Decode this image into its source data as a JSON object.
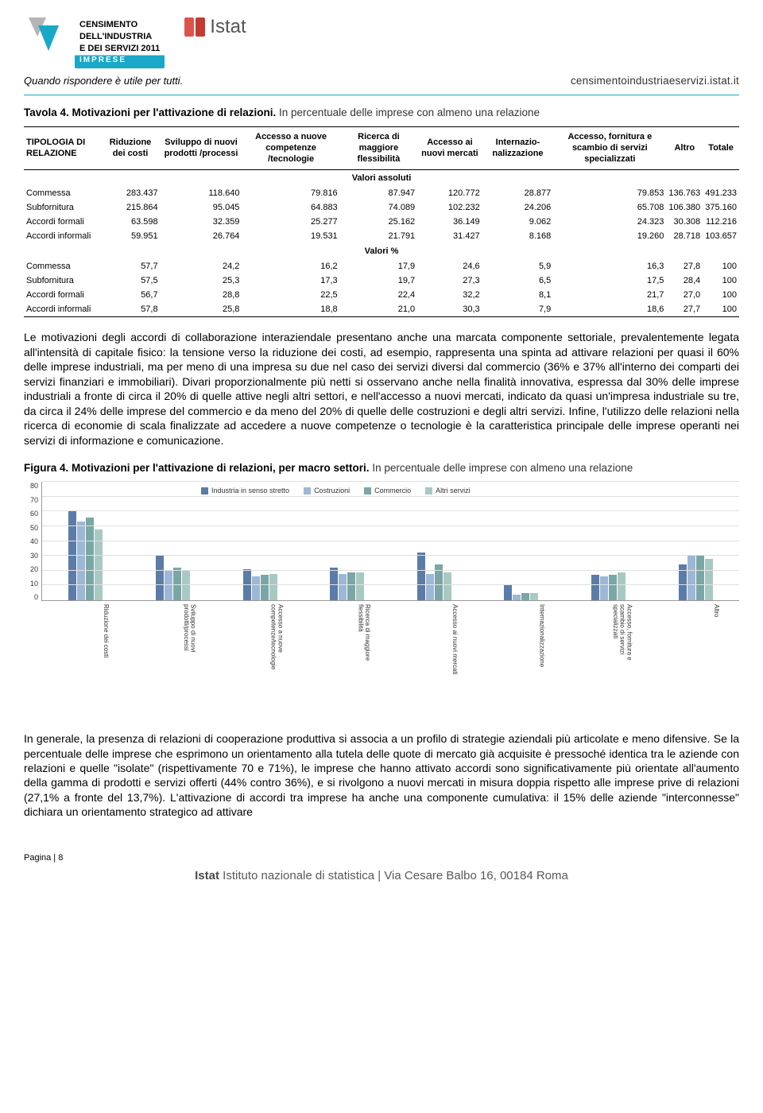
{
  "header": {
    "census": {
      "line1": "CENSIMENTO",
      "line2": "DELL'INDUSTRIA",
      "line3": "E DEI SERVIZI 2011",
      "line4": "IMPRESE"
    },
    "istat_wordmark": "Istat",
    "tagline": "Quando rispondere è utile per tutti.",
    "url": "censimentoindustriaeservizi.istat.it",
    "logo_colors": {
      "arrow1": "#b5b5b5",
      "arrow2": "#19a8c7",
      "bar1": "#d9554b",
      "bar2": "#c43a30"
    }
  },
  "table_caption": {
    "bold": "Tavola 4. Motivazioni per l'attivazione di relazioni.",
    "light": " In percentuale delle imprese con almeno una relazione"
  },
  "table": {
    "columns": [
      "TIPOLOGIA DI RELAZIONE",
      "Riduzione dei costi",
      "Sviluppo di nuovi prodotti /processi",
      "Accesso a nuove competenze /tecnologie",
      "Ricerca di maggiore flessibilità",
      "Accesso ai nuovi mercati",
      "Internazio-nalizzazione",
      "Accesso, fornitura e scambio di servizi specializzati",
      "Altro",
      "Totale"
    ],
    "section1": "Valori assoluti",
    "rows_abs": [
      [
        "Commessa",
        "283.437",
        "118.640",
        "79.816",
        "87.947",
        "120.772",
        "28.877",
        "79.853",
        "136.763",
        "491.233"
      ],
      [
        "Subfornitura",
        "215.864",
        "95.045",
        "64.883",
        "74.089",
        "102.232",
        "24.206",
        "65.708",
        "106.380",
        "375.160"
      ],
      [
        "Accordi formali",
        "63.598",
        "32.359",
        "25.277",
        "25.162",
        "36.149",
        "9.062",
        "24.323",
        "30.308",
        "112.216"
      ],
      [
        "Accordi informali",
        "59.951",
        "26.764",
        "19.531",
        "21.791",
        "31.427",
        "8.168",
        "19.260",
        "28.718",
        "103.657"
      ]
    ],
    "section2": "Valori %",
    "rows_pct": [
      [
        "Commessa",
        "57,7",
        "24,2",
        "16,2",
        "17,9",
        "24,6",
        "5,9",
        "16,3",
        "27,8",
        "100"
      ],
      [
        "Subfornitura",
        "57,5",
        "25,3",
        "17,3",
        "19,7",
        "27,3",
        "6,5",
        "17,5",
        "28,4",
        "100"
      ],
      [
        "Accordi formali",
        "56,7",
        "28,8",
        "22,5",
        "22,4",
        "32,2",
        "8,1",
        "21,7",
        "27,0",
        "100"
      ],
      [
        "Accordi informali",
        "57,8",
        "25,8",
        "18,8",
        "21,0",
        "30,3",
        "7,9",
        "18,6",
        "27,7",
        "100"
      ]
    ]
  },
  "paragraph1": "Le motivazioni degli accordi di collaborazione interaziendale presentano anche una marcata componente settoriale, prevalentemente legata all'intensità di capitale fisico: la tensione verso la riduzione dei costi, ad esempio, rappresenta una spinta ad attivare relazioni per quasi il 60% delle imprese industriali, ma per meno di una impresa su due nel caso dei servizi diversi dal commercio (36% e 37% all'interno dei comparti dei servizi finanziari e immobiliari). Divari proporzionalmente più netti si osservano anche nella finalità innovativa, espressa dal 30% delle imprese industriali a fronte di circa il 20% di quelle attive negli altri settori, e nell'accesso a nuovi mercati, indicato da quasi un'impresa industriale su tre, da circa il 24% delle imprese del commercio e da meno del 20% di quelle delle costruzioni e degli altri servizi. Infine, l'utilizzo delle relazioni nella ricerca di economie di scala finalizzate ad accedere a nuove competenze o tecnologie è la caratteristica principale delle imprese operanti nei servizi di informazione e comunicazione.",
  "figure_caption": {
    "bold": "Figura 4. Motivazioni per l'attivazione di relazioni, per macro settori.",
    "light": " In percentuale delle imprese con almeno una relazione"
  },
  "chart": {
    "type": "bar",
    "y_max": 80,
    "y_ticks": [
      0,
      10,
      20,
      30,
      40,
      50,
      60,
      70,
      80
    ],
    "series": [
      {
        "label": "Industria in senso stretto",
        "color": "#5b7ca8"
      },
      {
        "label": "Costruzioni",
        "color": "#9db8d6"
      },
      {
        "label": "Commercio",
        "color": "#7aa6a6"
      },
      {
        "label": "Altri servizi",
        "color": "#a8c9c2"
      }
    ],
    "categories": [
      "Riduzione dei costi",
      "Sviluppo di nuovi prodotti/processi",
      "Accesso a nuove competenze/tecnologie",
      "Ricerca di maggiore flessibilità",
      "Accesso ai nuovi mercati",
      "Internazionalizzazione",
      "Accesso, fornitura e scambio di servizi specializzati",
      "Altro"
    ],
    "values": [
      [
        60,
        53,
        56,
        48
      ],
      [
        30,
        20,
        22,
        20
      ],
      [
        21,
        16,
        17,
        18
      ],
      [
        22,
        18,
        19,
        19
      ],
      [
        32,
        18,
        24,
        19
      ],
      [
        10,
        4,
        5,
        5
      ],
      [
        17,
        16,
        17,
        19
      ],
      [
        24,
        30,
        30,
        28
      ]
    ],
    "grid_color": "#e0e0e0",
    "axis_color": "#999999"
  },
  "paragraph2": "In generale, la presenza di relazioni di cooperazione produttiva si associa a un profilo di strategie aziendali più articolate e meno difensive. Se la percentuale delle imprese che esprimono un orientamento alla tutela delle quote di mercato già acquisite è pressoché identica tra le aziende con relazioni e quelle \"isolate\" (rispettivamente 70 e 71%), le imprese che hanno attivato accordi sono significativamente più orientate all'aumento della gamma di prodotti e servizi offerti (44% contro 36%), e si rivolgono a nuovi mercati in misura doppia rispetto alle imprese prive di relazioni (27,1% a fronte del 13,7%). L'attivazione di accordi tra imprese ha anche una componente cumulativa: il 15% delle aziende \"interconnesse\" dichiara un orientamento strategico ad attivare",
  "footer": {
    "page": "Pagina | 8",
    "line_bold": "Istat",
    "line_rest": " Istituto nazionale di statistica | Via Cesare Balbo 16, 00184 Roma"
  }
}
